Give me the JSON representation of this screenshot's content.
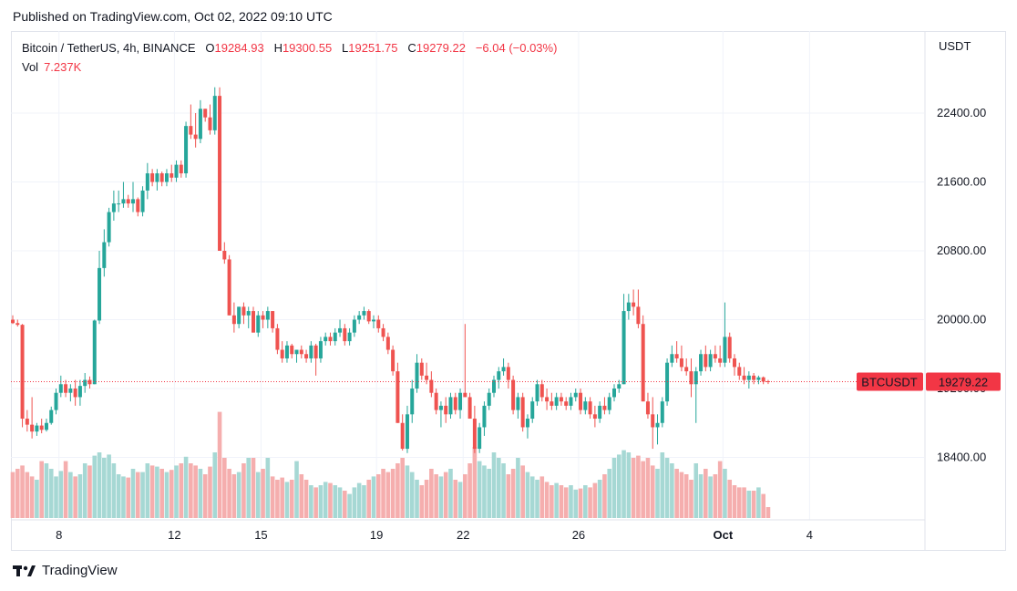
{
  "header": {
    "published": "Published on TradingView.com, Oct 02, 2022 09:10 UTC"
  },
  "legend": {
    "symbol": "Bitcoin / TetherUS, 4h, BINANCE",
    "o_label": "O",
    "o_value": "19284.93",
    "h_label": "H",
    "h_value": "19300.55",
    "l_label": "L",
    "l_value": "19251.75",
    "c_label": "C",
    "c_value": "19279.22",
    "change": "−6.04 (−0.03%)",
    "vol_label": "Vol",
    "vol_value": "7.237K"
  },
  "price_axis": {
    "currency": "USDT"
  },
  "price_tag": {
    "symbol": "BTCUSDT",
    "price": "19279.22"
  },
  "footer": {
    "brand": "TradingView"
  },
  "colors": {
    "up": "#26a69a",
    "down": "#ef5350",
    "up_vol": "#a6d8d4",
    "down_vol": "#f5aeae",
    "grid": "#f0f3fa"
  },
  "chart_data": {
    "type": "candlestick",
    "title": "Bitcoin / TetherUS, 4h, BINANCE",
    "interval": "4h",
    "ylabel": "USDT",
    "ylim": [
      17750,
      23600
    ],
    "y_ticks": [
      18400,
      19200,
      20000,
      20800,
      21600,
      22400
    ],
    "y_tick_labels": [
      "18400.00",
      "19200.00",
      "20000.00",
      "20800.00",
      "21600.00",
      "22400.00"
    ],
    "x_ticks": [
      {
        "label": "8",
        "day": 8
      },
      {
        "label": "12",
        "day": 12
      },
      {
        "label": "15",
        "day": 15
      },
      {
        "label": "19",
        "day": 19
      },
      {
        "label": "22",
        "day": 22
      },
      {
        "label": "26",
        "day": 26
      },
      {
        "label": "Oct",
        "day": 31,
        "bold": true
      },
      {
        "label": "4",
        "day": 34
      }
    ],
    "x_start_day": 6.4,
    "candles": [
      [
        20000,
        20050,
        19950,
        19960
      ],
      [
        19960,
        20000,
        19920,
        19940
      ],
      [
        19940,
        19950,
        18750,
        18850
      ],
      [
        18850,
        18950,
        18700,
        18780
      ],
      [
        18780,
        19100,
        18620,
        18700
      ],
      [
        18700,
        18800,
        18650,
        18770
      ],
      [
        18770,
        18850,
        18680,
        18720
      ],
      [
        18720,
        18850,
        18700,
        18800
      ],
      [
        18800,
        18990,
        18780,
        18950
      ],
      [
        18950,
        19200,
        18900,
        19150
      ],
      [
        19150,
        19350,
        19100,
        19250
      ],
      [
        19250,
        19300,
        19100,
        19150
      ],
      [
        19150,
        19250,
        19050,
        19200
      ],
      [
        19200,
        19300,
        19000,
        19100
      ],
      [
        19100,
        19300,
        19000,
        19230
      ],
      [
        19230,
        19380,
        19150,
        19300
      ],
      [
        19300,
        19340,
        19200,
        19250
      ],
      [
        19250,
        20000,
        19250,
        19990
      ],
      [
        19990,
        20800,
        19950,
        20600
      ],
      [
        20600,
        21050,
        20500,
        20900
      ],
      [
        20900,
        21300,
        20850,
        21250
      ],
      [
        21250,
        21500,
        21150,
        21350
      ],
      [
        21350,
        21500,
        21250,
        21350
      ],
      [
        21350,
        21600,
        21300,
        21400
      ],
      [
        21400,
        21450,
        21300,
        21350
      ],
      [
        21350,
        21600,
        21250,
        21400
      ],
      [
        21400,
        21420,
        21200,
        21250
      ],
      [
        21250,
        21550,
        21200,
        21500
      ],
      [
        21500,
        21820,
        21400,
        21700
      ],
      [
        21700,
        21750,
        21550,
        21600
      ],
      [
        21600,
        21750,
        21500,
        21700
      ],
      [
        21700,
        21720,
        21550,
        21600
      ],
      [
        21600,
        21750,
        21550,
        21700
      ],
      [
        21700,
        21800,
        21600,
        21650
      ],
      [
        21650,
        21850,
        21600,
        21800
      ],
      [
        21800,
        21850,
        21650,
        21700
      ],
      [
        21700,
        22300,
        21650,
        22250
      ],
      [
        22250,
        22500,
        22100,
        22150
      ],
      [
        22150,
        22400,
        22000,
        22100
      ],
      [
        22100,
        22550,
        22050,
        22450
      ],
      [
        22450,
        22450,
        22300,
        22350
      ],
      [
        22350,
        22500,
        22150,
        22200
      ],
      [
        22200,
        22700,
        22150,
        22600
      ],
      [
        22600,
        22700,
        20800,
        20800
      ],
      [
        20800,
        20900,
        20650,
        20700
      ],
      [
        20700,
        20750,
        20050,
        20050
      ],
      [
        20050,
        20200,
        19850,
        19950
      ],
      [
        19950,
        20150,
        19900,
        20150
      ],
      [
        20150,
        20200,
        19950,
        20050
      ],
      [
        20050,
        20150,
        19900,
        20100
      ],
      [
        20100,
        20150,
        19850,
        19850
      ],
      [
        19850,
        20100,
        19800,
        20050
      ],
      [
        20050,
        20100,
        19900,
        20000
      ],
      [
        20000,
        20150,
        19900,
        20100
      ],
      [
        20100,
        20100,
        19850,
        19900
      ],
      [
        19900,
        19950,
        19600,
        19650
      ],
      [
        19650,
        19750,
        19500,
        19550
      ],
      [
        19550,
        19750,
        19500,
        19700
      ],
      [
        19700,
        19720,
        19550,
        19600
      ],
      [
        19600,
        19650,
        19500,
        19650
      ],
      [
        19650,
        19700,
        19550,
        19600
      ],
      [
        19600,
        19650,
        19500,
        19550
      ],
      [
        19550,
        19750,
        19500,
        19700
      ],
      [
        19700,
        19720,
        19350,
        19550
      ],
      [
        19550,
        19800,
        19500,
        19750
      ],
      [
        19750,
        19850,
        19700,
        19800
      ],
      [
        19800,
        19850,
        19700,
        19750
      ],
      [
        19750,
        19900,
        19700,
        19850
      ],
      [
        19850,
        20000,
        19800,
        19900
      ],
      [
        19900,
        19950,
        19700,
        19750
      ],
      [
        19750,
        19900,
        19700,
        19850
      ],
      [
        19850,
        20050,
        19800,
        20000
      ],
      [
        20000,
        20100,
        19950,
        20050
      ],
      [
        20050,
        20150,
        20000,
        20100
      ],
      [
        20100,
        20120,
        19950,
        19980
      ],
      [
        19980,
        20050,
        19900,
        20000
      ],
      [
        20000,
        20050,
        19850,
        19900
      ],
      [
        19900,
        19950,
        19750,
        19800
      ],
      [
        19800,
        19850,
        19600,
        19650
      ],
      [
        19650,
        19700,
        19350,
        19400
      ],
      [
        19400,
        19500,
        18800,
        18800
      ],
      [
        18800,
        18900,
        18480,
        18500
      ],
      [
        18500,
        19000,
        18450,
        18900
      ],
      [
        18900,
        19300,
        18800,
        19200
      ],
      [
        19200,
        19600,
        19150,
        19500
      ],
      [
        19500,
        19550,
        19300,
        19350
      ],
      [
        19350,
        19500,
        19250,
        19300
      ],
      [
        19300,
        19400,
        19100,
        19150
      ],
      [
        19150,
        19200,
        18900,
        18950
      ],
      [
        18950,
        19050,
        18750,
        19000
      ],
      [
        19000,
        19100,
        18800,
        18900
      ],
      [
        18900,
        19150,
        18850,
        19100
      ],
      [
        19100,
        19150,
        18900,
        18950
      ],
      [
        18950,
        19200,
        18850,
        19150
      ],
      [
        19150,
        19950,
        19100,
        19100
      ],
      [
        19100,
        19150,
        18850,
        18850
      ],
      [
        18850,
        19000,
        18450,
        18500
      ],
      [
        18500,
        18800,
        18450,
        18750
      ],
      [
        18750,
        19050,
        18650,
        19000
      ],
      [
        19000,
        19200,
        18950,
        19150
      ],
      [
        19150,
        19350,
        19100,
        19300
      ],
      [
        19300,
        19450,
        19200,
        19400
      ],
      [
        19400,
        19550,
        19350,
        19450
      ],
      [
        19450,
        19500,
        19200,
        19300
      ],
      [
        19300,
        19350,
        18900,
        18950
      ],
      [
        18950,
        19150,
        18850,
        19100
      ],
      [
        19100,
        19150,
        18700,
        18750
      ],
      [
        18750,
        18900,
        18620,
        18850
      ],
      [
        18850,
        19100,
        18800,
        19050
      ],
      [
        19050,
        19300,
        19000,
        19250
      ],
      [
        19250,
        19300,
        19050,
        19100
      ],
      [
        19100,
        19200,
        18950,
        19050
      ],
      [
        19050,
        19150,
        18950,
        19000
      ],
      [
        19000,
        19150,
        18950,
        19100
      ],
      [
        19100,
        19150,
        19000,
        19050
      ],
      [
        19050,
        19100,
        18950,
        19000
      ],
      [
        19000,
        19150,
        18950,
        19100
      ],
      [
        19100,
        19200,
        19050,
        19150
      ],
      [
        19150,
        19200,
        18900,
        18950
      ],
      [
        18950,
        19100,
        18900,
        19050
      ],
      [
        19050,
        19100,
        18850,
        18900
      ],
      [
        18900,
        19000,
        18750,
        18850
      ],
      [
        18850,
        19050,
        18800,
        19000
      ],
      [
        19000,
        19100,
        18900,
        18950
      ],
      [
        18950,
        19150,
        18900,
        19100
      ],
      [
        19100,
        19250,
        19050,
        19200
      ],
      [
        19200,
        19300,
        19150,
        19250
      ],
      [
        19250,
        20300,
        19250,
        20100
      ],
      [
        20100,
        20300,
        20000,
        20200
      ],
      [
        20200,
        20350,
        20050,
        20150
      ],
      [
        20150,
        20350,
        19900,
        19950
      ],
      [
        19950,
        20050,
        19050,
        19050
      ],
      [
        19050,
        19150,
        18850,
        18900
      ],
      [
        18900,
        19100,
        18500,
        18750
      ],
      [
        18750,
        18900,
        18550,
        18800
      ],
      [
        18800,
        19100,
        18750,
        19050
      ],
      [
        19050,
        19550,
        19000,
        19500
      ],
      [
        19500,
        19700,
        19450,
        19600
      ],
      [
        19600,
        19750,
        19500,
        19550
      ],
      [
        19550,
        19700,
        19400,
        19450
      ],
      [
        19450,
        19550,
        19350,
        19400
      ],
      [
        19400,
        19550,
        19100,
        19250
      ],
      [
        19250,
        19450,
        18800,
        19400
      ],
      [
        19400,
        19650,
        19350,
        19600
      ],
      [
        19600,
        19700,
        19400,
        19450
      ],
      [
        19450,
        19650,
        19400,
        19600
      ],
      [
        19600,
        19700,
        19500,
        19550
      ],
      [
        19550,
        19700,
        19450,
        19500
      ],
      [
        19500,
        20200,
        19450,
        19800
      ],
      [
        19800,
        19850,
        19500,
        19550
      ],
      [
        19550,
        19600,
        19350,
        19450
      ],
      [
        19450,
        19500,
        19300,
        19350
      ],
      [
        19350,
        19450,
        19250,
        19300
      ],
      [
        19300,
        19400,
        19200,
        19350
      ],
      [
        19350,
        19380,
        19250,
        19300
      ],
      [
        19300,
        19350,
        19250,
        19330
      ],
      [
        19330,
        19340,
        19250,
        19280
      ],
      [
        19284.93,
        19300.55,
        19251.75,
        19279.22
      ]
    ],
    "volumes": [
      0.42,
      0.45,
      0.48,
      0.42,
      0.38,
      0.35,
      0.52,
      0.5,
      0.45,
      0.38,
      0.43,
      0.52,
      0.42,
      0.38,
      0.4,
      0.5,
      0.48,
      0.57,
      0.6,
      0.55,
      0.58,
      0.5,
      0.4,
      0.38,
      0.37,
      0.45,
      0.42,
      0.42,
      0.5,
      0.48,
      0.47,
      0.45,
      0.42,
      0.44,
      0.48,
      0.5,
      0.56,
      0.5,
      0.48,
      0.45,
      0.4,
      0.47,
      0.6,
      0.97,
      0.55,
      0.45,
      0.4,
      0.42,
      0.5,
      0.55,
      0.55,
      0.42,
      0.45,
      0.55,
      0.38,
      0.35,
      0.37,
      0.33,
      0.35,
      0.52,
      0.4,
      0.35,
      0.3,
      0.28,
      0.3,
      0.33,
      0.32,
      0.3,
      0.28,
      0.25,
      0.22,
      0.28,
      0.32,
      0.3,
      0.35,
      0.38,
      0.4,
      0.45,
      0.42,
      0.45,
      0.5,
      0.55,
      0.48,
      0.42,
      0.35,
      0.3,
      0.35,
      0.45,
      0.4,
      0.38,
      0.42,
      0.45,
      0.35,
      0.33,
      0.4,
      0.5,
      0.65,
      0.52,
      0.48,
      0.45,
      0.6,
      0.55,
      0.5,
      0.4,
      0.45,
      0.55,
      0.48,
      0.42,
      0.38,
      0.35,
      0.38,
      0.33,
      0.3,
      0.32,
      0.3,
      0.28,
      0.3,
      0.26,
      0.27,
      0.3,
      0.28,
      0.32,
      0.35,
      0.4,
      0.45,
      0.55,
      0.58,
      0.62,
      0.6,
      0.55,
      0.57,
      0.52,
      0.55,
      0.48,
      0.45,
      0.6,
      0.55,
      0.5,
      0.45,
      0.42,
      0.4,
      0.35,
      0.5,
      0.4,
      0.45,
      0.38,
      0.4,
      0.52,
      0.45,
      0.35,
      0.3,
      0.28,
      0.28,
      0.25,
      0.25,
      0.28,
      0.22,
      0.1
    ]
  }
}
